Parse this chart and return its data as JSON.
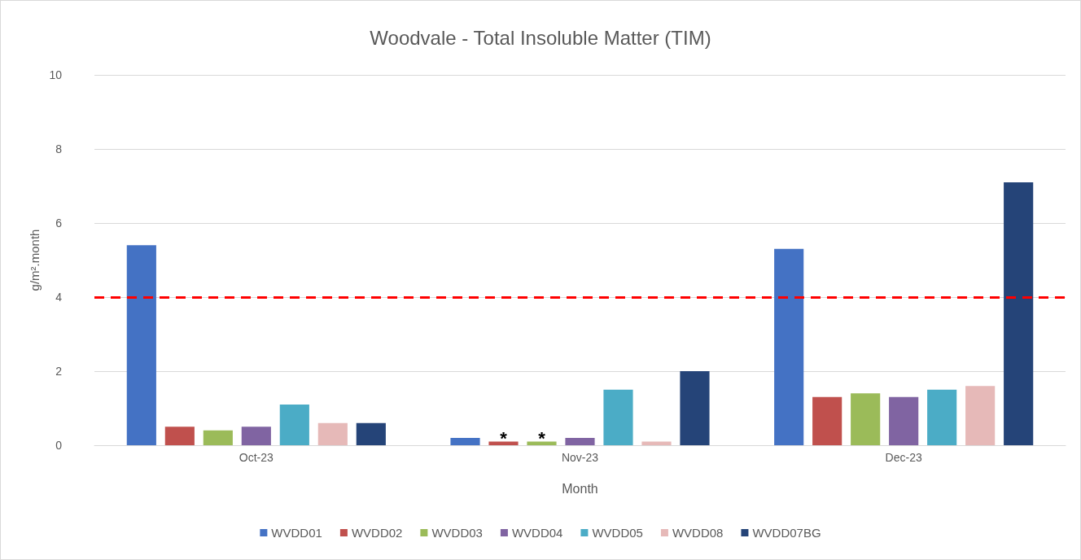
{
  "chart_data": {
    "type": "bar",
    "title": "Woodvale - Total Insoluble Matter (TIM)",
    "xlabel": "Month",
    "ylabel": "g/m².month",
    "categories": [
      "Oct-23",
      "Nov-23",
      "Dec-23"
    ],
    "series": [
      {
        "name": "WVDD01",
        "color": "#4472c4",
        "values": [
          5.4,
          0.2,
          5.3
        ]
      },
      {
        "name": "WVDD02",
        "color": "#c0504d",
        "values": [
          0.5,
          0.1,
          1.3
        ],
        "value_labels": [
          null,
          "*",
          null
        ]
      },
      {
        "name": "WVDD03",
        "color": "#9bbb59",
        "values": [
          0.4,
          0.1,
          1.4
        ],
        "value_labels": [
          null,
          "*",
          null
        ]
      },
      {
        "name": "WVDD04",
        "color": "#8064a2",
        "values": [
          0.5,
          0.2,
          1.3
        ]
      },
      {
        "name": "WVDD05",
        "color": "#4bacc6",
        "values": [
          1.1,
          1.5,
          1.5
        ]
      },
      {
        "name": "WVDD08",
        "color": "#e6b9b8",
        "values": [
          0.6,
          0.1,
          1.6
        ]
      },
      {
        "name": "WVDD07BG",
        "color": "#254478",
        "values": [
          0.6,
          2.0,
          7.1
        ]
      }
    ],
    "ylim": [
      0,
      10
    ],
    "yticks": [
      0,
      2,
      4,
      6,
      8,
      10
    ],
    "grid": "y",
    "legend": "bottom",
    "ref_lines": [
      {
        "axis": "y",
        "value": 4,
        "color": "#ff0000",
        "line_style": "dashed"
      }
    ]
  }
}
